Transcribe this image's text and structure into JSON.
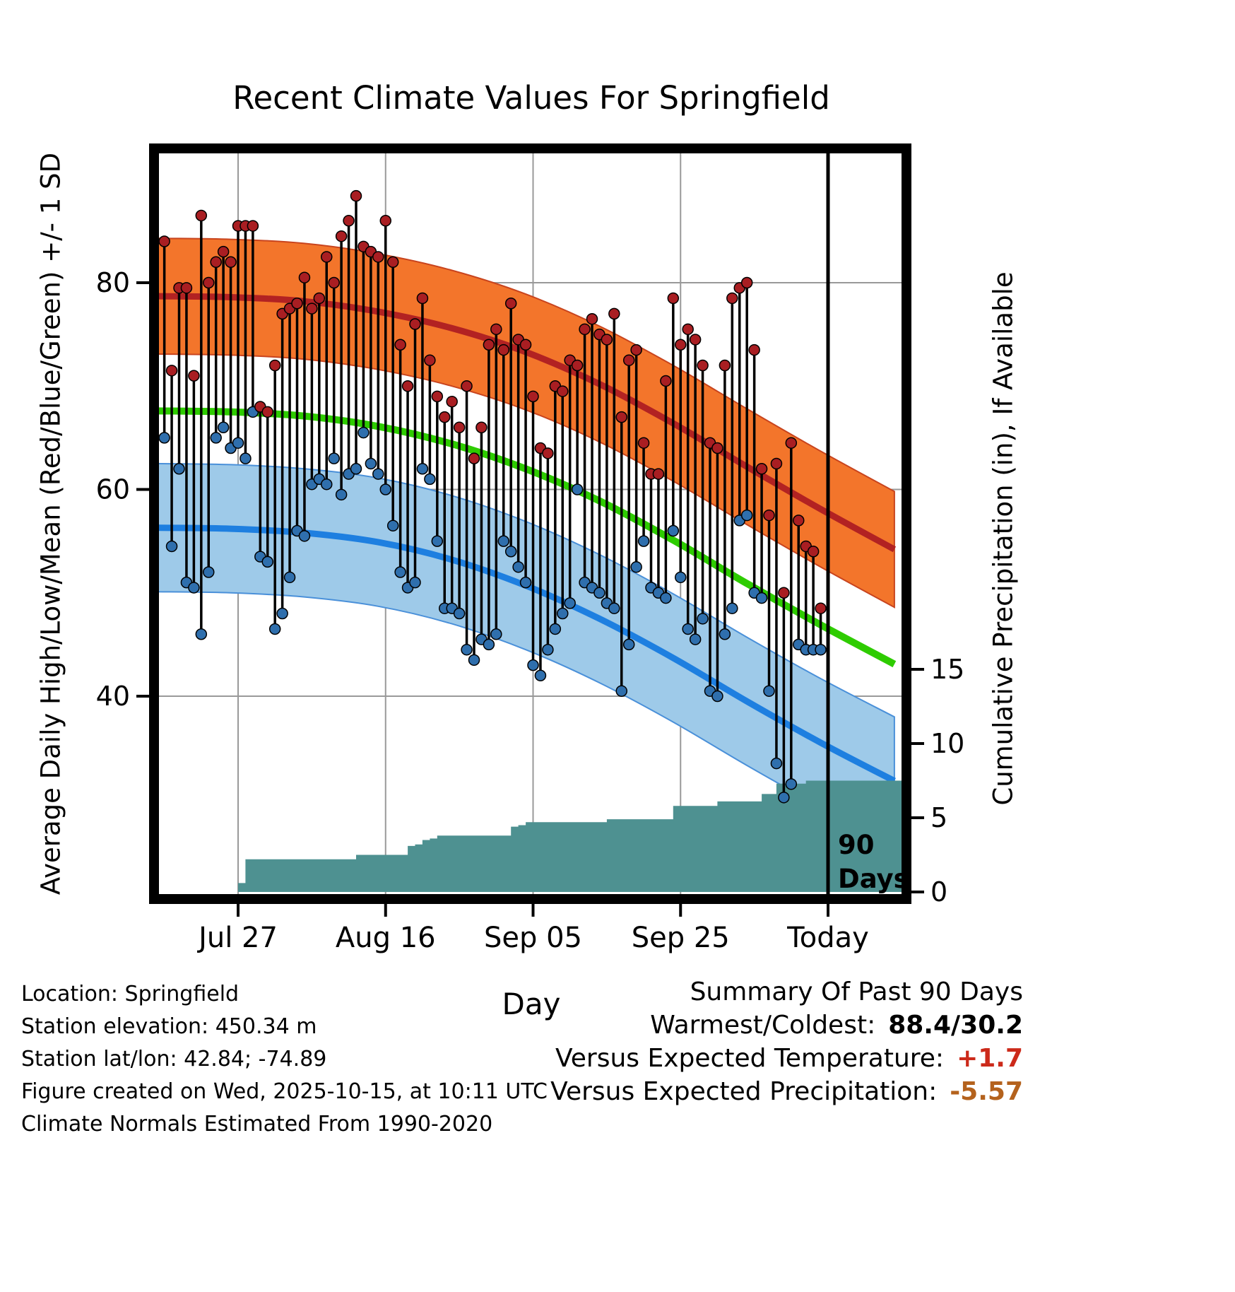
{
  "title": "Recent Climate Values For Springfield",
  "axes": {
    "left_label": "Average Daily High/Low/Mean (Red/Blue/Green) +/- 1 SD",
    "right_label": "Cumulative Precipitation (in), If Available",
    "x_label": "Day",
    "left_tick_labels": [
      "80",
      "60",
      "40"
    ],
    "left_tick_values": [
      80,
      60,
      40
    ],
    "right_tick_labels": [
      "15",
      "10",
      "5",
      "0"
    ],
    "right_tick_values": [
      15,
      10,
      5,
      0
    ],
    "x_tick_labels": [
      "Jul 27",
      "Aug 16",
      "Sep 05",
      "Sep 25",
      "Today"
    ]
  },
  "annotations": {
    "period_line1": "90",
    "period_line2": "Days"
  },
  "footer": {
    "lines": [
      "Location: Springfield",
      "Station elevation: 450.34 m",
      "Station lat/lon: 42.84; -74.89",
      "Figure created on Wed, 2025-10-15, at 10:11 UTC",
      "Climate Normals Estimated From 1990-2020"
    ]
  },
  "summary": {
    "title": "Summary Of Past 90 Days",
    "rows": [
      {
        "label": "Warmest/Coldest:",
        "value": "88.4/30.2",
        "value_color": "#000000"
      },
      {
        "label": "Versus Expected Temperature:",
        "value": "+1.7",
        "value_color": "#cc2a1a"
      },
      {
        "label": "Versus Expected Precipitation:",
        "value": "-5.57",
        "value_color": "#b4621d"
      }
    ]
  },
  "chart_data": {
    "type": "line",
    "title": "Recent Climate Values For Springfield",
    "xlabel": "Day",
    "ylabel_left": "Average Daily High/Low/Mean (Red/Blue/Green) +/- 1 SD",
    "ylabel_right": "Cumulative Precipitation (in), If Available",
    "temp_axis": {
      "ticks": [
        40,
        60,
        80
      ],
      "ymin": 20,
      "ymax": 93
    },
    "precip_axis": {
      "ticks": [
        0,
        5,
        10,
        15
      ]
    },
    "x_ticks": {
      "labels": [
        "Jul 27",
        "Aug 16",
        "Sep 05",
        "Sep 25",
        "Today"
      ],
      "day_offsets": [
        11,
        31,
        51,
        71,
        91
      ]
    },
    "today_day_offset": 91,
    "daily": {
      "first_day_offset": 1,
      "highs": [
        84,
        71.5,
        79.5,
        79.5,
        71,
        86.5,
        80,
        82,
        83,
        82,
        85.5,
        85.5,
        85.5,
        68,
        67.5,
        72,
        77,
        77.5,
        78,
        80.5,
        77.5,
        78.5,
        82.5,
        80,
        84.5,
        86,
        88.4,
        83.5,
        83,
        82.5,
        86,
        82,
        74,
        70,
        76,
        78.5,
        72.5,
        69,
        67,
        68.5,
        66,
        70,
        63,
        66,
        74,
        75.5,
        73.5,
        78,
        74.5,
        74,
        69,
        64,
        63.5,
        70,
        69.5,
        72.5,
        72,
        75.5,
        76.5,
        75,
        74.5,
        77,
        67,
        72.5,
        73.5,
        64.5,
        61.5,
        61.5,
        70.5,
        78.5,
        74,
        75.5,
        74.5,
        72,
        64.5,
        64,
        72,
        78.5,
        79.5,
        80,
        73.5,
        62,
        57.5,
        62.5,
        50,
        64.5,
        57,
        54.5,
        54,
        48.5
      ],
      "lows": [
        65,
        54.5,
        62,
        51,
        50.5,
        46,
        52,
        65,
        66,
        64,
        64.5,
        63,
        67.5,
        53.5,
        53,
        46.5,
        48,
        51.5,
        56,
        55.5,
        60.5,
        61,
        60.5,
        63,
        59.5,
        61.5,
        62,
        65.5,
        62.5,
        61.5,
        60,
        56.5,
        52,
        50.5,
        51,
        62,
        61,
        55,
        48.5,
        48.5,
        48,
        44.5,
        43.5,
        45.5,
        45,
        46,
        55,
        54,
        52.5,
        51,
        43,
        42,
        44.5,
        46.5,
        48,
        49,
        60,
        51,
        50.5,
        50,
        49,
        48.5,
        40.5,
        45,
        52.5,
        55,
        50.5,
        50,
        49.5,
        56,
        51.5,
        46.5,
        45.5,
        47.5,
        40.5,
        40,
        46,
        48.5,
        57,
        57.5,
        50,
        49.5,
        40.5,
        33.5,
        30.2,
        31.5,
        45,
        44.5,
        44.5,
        44.5
      ]
    },
    "cumulative_precip_in": [
      0,
      0,
      0,
      0,
      0,
      0,
      0,
      0,
      0,
      0,
      0.6,
      2.2,
      2.2,
      2.2,
      2.2,
      2.2,
      2.2,
      2.2,
      2.2,
      2.2,
      2.2,
      2.2,
      2.2,
      2.2,
      2.2,
      2.2,
      2.5,
      2.5,
      2.5,
      2.5,
      2.5,
      2.5,
      2.5,
      3.1,
      3.2,
      3.5,
      3.6,
      3.8,
      3.8,
      3.8,
      3.8,
      3.8,
      3.8,
      3.8,
      3.8,
      3.8,
      3.8,
      4.4,
      4.5,
      4.7,
      4.7,
      4.7,
      4.7,
      4.7,
      4.7,
      4.7,
      4.7,
      4.7,
      4.7,
      4.7,
      4.9,
      4.9,
      4.9,
      4.9,
      4.9,
      4.9,
      4.9,
      4.9,
      4.9,
      5.8,
      5.8,
      5.8,
      5.8,
      5.8,
      5.8,
      6.1,
      6.1,
      6.1,
      6.1,
      6.1,
      6.1,
      6.6,
      6.6,
      7.3,
      7.3,
      7.3,
      7.3,
      7.5,
      7.5,
      7.5
    ],
    "normals": {
      "day_offsets": [
        0,
        10,
        20,
        30,
        40,
        50,
        60,
        70,
        80,
        90,
        100
      ],
      "high_mean": [
        78.7,
        78.6,
        78.2,
        77.2,
        75.6,
        73.3,
        70.2,
        66.4,
        62.2,
        58.1,
        54.2
      ],
      "mean": [
        67.6,
        67.5,
        67.1,
        66.1,
        64.4,
        62.0,
        58.9,
        55.1,
        50.9,
        46.9,
        43.1
      ],
      "low_mean": [
        56.3,
        56.2,
        55.8,
        54.9,
        53.2,
        50.7,
        47.5,
        43.7,
        39.5,
        35.5,
        31.8
      ],
      "high_sd": 5.6,
      "low_sd": 6.2
    },
    "colors": {
      "high_band": "#F3752B",
      "high_band_edge": "#C8441E",
      "high_line": "#B22222",
      "high_dot": "#A91E22",
      "low_band": "#9ECAE9",
      "low_band_edge": "#4A90D9",
      "low_line": "#1E7FE0",
      "low_dot": "#2F6FAD",
      "mean_line": "#2ECC00",
      "precip_fill": "#4E9191",
      "grid": "#999999",
      "frame": "#000000"
    }
  }
}
